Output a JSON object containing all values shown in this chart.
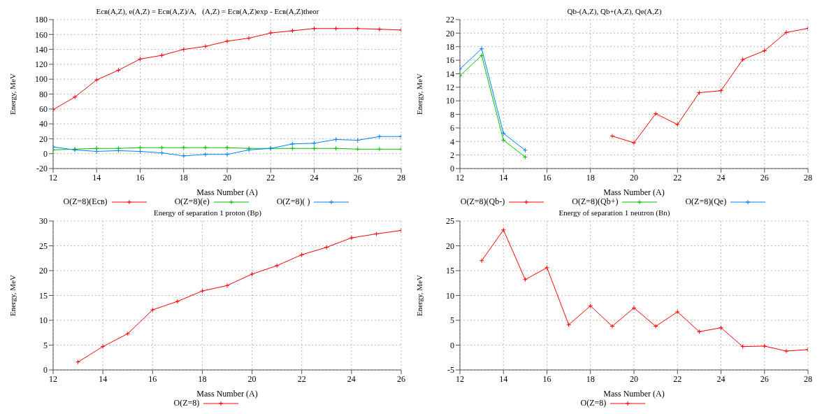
{
  "chart_data": [
    {
      "type": "line",
      "title": "Eсв(A,Z), e(A,Z) = Eсв(A,Z)/A,   (A,Z) = Eсв(A,Z)exp - Eсв(A,Z)theor",
      "xlabel": "Mass Number (A)",
      "ylabel": "Energy, MeV",
      "xlim": [
        12,
        28
      ],
      "xticks": [
        12,
        14,
        16,
        18,
        20,
        22,
        24,
        26,
        28
      ],
      "ylim": [
        -20,
        180
      ],
      "yticks": [
        -20,
        0,
        20,
        40,
        60,
        80,
        100,
        120,
        140,
        160,
        180
      ],
      "grid": true,
      "legend": "bottom",
      "x": [
        12,
        13,
        14,
        15,
        16,
        17,
        18,
        19,
        20,
        21,
        22,
        23,
        24,
        25,
        26,
        27,
        28
      ],
      "series": [
        {
          "name": "O(Z=8)(Eсв)",
          "color": "#ff0000",
          "marker": "cross",
          "values": [
            59,
            76,
            99,
            112,
            127,
            132,
            140,
            144,
            151,
            155,
            162,
            165,
            168,
            168,
            168,
            167,
            166
          ]
        },
        {
          "name": "O(Z=8)(e)",
          "color": "#00c000",
          "marker": "cross",
          "values": [
            5,
            6,
            7,
            7,
            8,
            8,
            8,
            8,
            8,
            7,
            7,
            7,
            7,
            7,
            6,
            6,
            6
          ]
        },
        {
          "name": "O(Z=8)( )",
          "color": "#0080ff",
          "marker": "cross",
          "values": [
            9,
            5,
            3,
            4,
            3,
            1,
            -3,
            -1,
            -1,
            5,
            7,
            13,
            14,
            19,
            18,
            23,
            23
          ]
        }
      ]
    },
    {
      "type": "line",
      "title": "Qb-(A,Z), Qb+(A,Z), Qe(A,Z)",
      "xlabel": "Mass Number (A)",
      "ylabel": "Energy, MeV",
      "xlim": [
        12,
        28
      ],
      "xticks": [
        12,
        14,
        16,
        18,
        20,
        22,
        24,
        26,
        28
      ],
      "ylim": [
        0,
        22
      ],
      "yticks": [
        0,
        2,
        4,
        6,
        8,
        10,
        12,
        14,
        16,
        18,
        20,
        22
      ],
      "grid": true,
      "legend": "bottom",
      "series": [
        {
          "name": "O(Z=8)(Qb-)",
          "color": "#ff0000",
          "marker": "cross",
          "x": [
            19,
            20,
            21,
            22,
            23,
            24,
            25,
            26,
            27,
            28
          ],
          "values": [
            4.8,
            3.8,
            8.1,
            6.5,
            11.2,
            11.5,
            16.1,
            17.4,
            20.1,
            20.7
          ]
        },
        {
          "name": "O(Z=8)(Qb+)",
          "color": "#00c000",
          "marker": "cross",
          "x": [
            12,
            13,
            14,
            15
          ],
          "values": [
            13.7,
            16.7,
            4.2,
            1.7
          ]
        },
        {
          "name": "O(Z=8)(Qe)",
          "color": "#0080ff",
          "marker": "cross",
          "x": [
            12,
            13,
            14,
            15
          ],
          "values": [
            14.7,
            17.7,
            5.2,
            2.7
          ]
        }
      ]
    },
    {
      "type": "line",
      "title": "Energy of separation 1 proton (Bp)",
      "xlabel": "Mass Number (A)",
      "ylabel": "Energy, MeV",
      "xlim": [
        12,
        26
      ],
      "xticks": [
        12,
        14,
        16,
        18,
        20,
        22,
        24,
        26
      ],
      "ylim": [
        0,
        30
      ],
      "yticks": [
        0,
        5,
        10,
        15,
        20,
        25,
        30
      ],
      "grid": true,
      "legend": "bottom",
      "x": [
        13,
        14,
        15,
        16,
        17,
        18,
        19,
        20,
        21,
        22,
        23,
        24,
        25,
        26
      ],
      "series": [
        {
          "name": "O(Z=8)",
          "color": "#ff0000",
          "marker": "cross",
          "values": [
            1.6,
            4.7,
            7.3,
            12.1,
            13.8,
            15.9,
            17.0,
            19.3,
            21.0,
            23.2,
            24.7,
            26.6,
            27.4,
            28.1
          ]
        }
      ]
    },
    {
      "type": "line",
      "title": "Energy of separation 1 neutron (Bn)",
      "xlabel": "Mass Number (A)",
      "ylabel": "Energy, MeV",
      "xlim": [
        12,
        28
      ],
      "xticks": [
        12,
        14,
        16,
        18,
        20,
        22,
        24,
        26,
        28
      ],
      "ylim": [
        -5,
        25
      ],
      "yticks": [
        -5,
        0,
        5,
        10,
        15,
        20,
        25
      ],
      "grid": true,
      "legend": "bottom",
      "x": [
        13,
        14,
        15,
        16,
        17,
        18,
        19,
        20,
        21,
        22,
        23,
        24,
        25,
        26,
        27,
        28
      ],
      "series": [
        {
          "name": "O(Z=8)",
          "color": "#ff0000",
          "marker": "cross",
          "values": [
            17,
            23.2,
            13.2,
            15.6,
            4.1,
            7.9,
            3.8,
            7.5,
            3.8,
            6.7,
            2.7,
            3.5,
            -0.3,
            -0.2,
            -1.2,
            -0.9
          ]
        }
      ]
    }
  ]
}
